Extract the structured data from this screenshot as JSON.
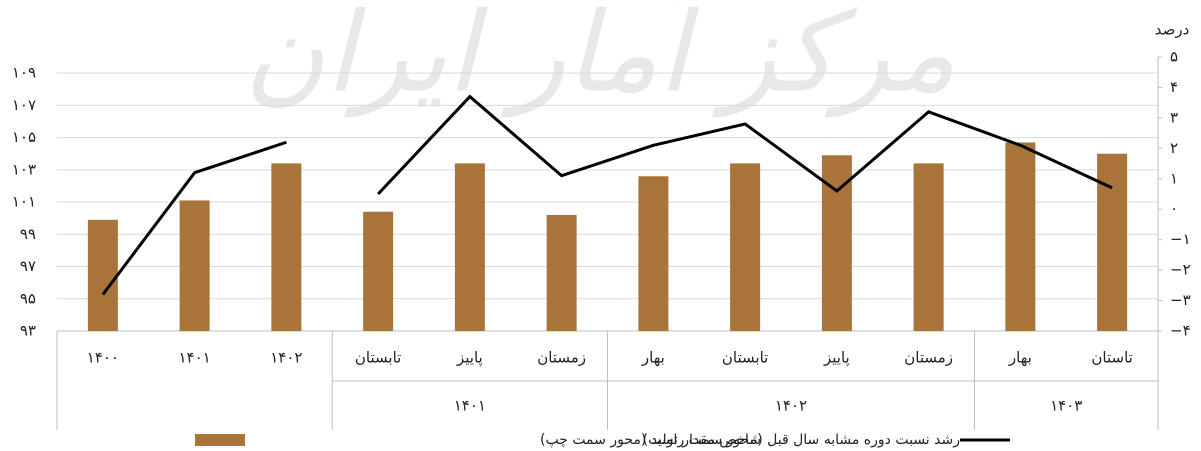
{
  "chart_data": {
    "type": "combo",
    "watermark": "مرکز آمار ایران",
    "y2_label": "درصد",
    "categories": [
      "۱۴۰۰",
      "۱۴۰۱",
      "۱۴۰۲",
      "تابستان",
      "پاییز",
      "زمستان",
      "بهار",
      "تابستان",
      "پاییز",
      "زمستان",
      "بهار",
      "تاستان"
    ],
    "groups": [
      {
        "label": null,
        "size": 3
      },
      {
        "label": "۱۴۰۱",
        "size": 3
      },
      {
        "label": "۱۴۰۲",
        "size": 4
      },
      {
        "label": "۱۴۰۳",
        "size": 2
      }
    ],
    "series": [
      {
        "name": "شاخص مقدار تولید (محور سمت چپ)",
        "type": "bar",
        "color": "#a9743a",
        "values": [
          99.9,
          101.1,
          103.4,
          100.4,
          103.4,
          100.2,
          102.6,
          103.4,
          103.9,
          103.4,
          104.7,
          104.0
        ]
      },
      {
        "name": "رشد نسبت دوره مشابه سال قبل (محور سمت راست)",
        "type": "line",
        "color": "#000000",
        "axis": "y2",
        "line_break_before": [
          3
        ],
        "values": [
          -2.8,
          1.2,
          2.2,
          0.5,
          3.7,
          1.1,
          2.1,
          2.8,
          0.6,
          3.2,
          2.1,
          0.7
        ]
      }
    ],
    "ylim": [
      93,
      110
    ],
    "yticks": [
      {
        "value": 93,
        "label": "۹۳"
      },
      {
        "value": 95,
        "label": "۹۵"
      },
      {
        "value": 97,
        "label": "۹۷"
      },
      {
        "value": 99,
        "label": "۹۹"
      },
      {
        "value": 101,
        "label": "۱۰۱"
      },
      {
        "value": 103,
        "label": "۱۰۳"
      },
      {
        "value": 105,
        "label": "۱۰۵"
      },
      {
        "value": 107,
        "label": "۱۰۷"
      },
      {
        "value": 109,
        "label": "۱۰۹"
      }
    ],
    "y2lim": [
      -4,
      5
    ],
    "y2ticks": [
      {
        "value": 5,
        "label": "۵"
      },
      {
        "value": 4,
        "label": "۴"
      },
      {
        "value": 3,
        "label": "۳"
      },
      {
        "value": 2,
        "label": "۲"
      },
      {
        "value": 1,
        "label": "۱"
      },
      {
        "value": 0,
        "label": "۰"
      },
      {
        "value": -1,
        "label": "−۱"
      },
      {
        "value": -2,
        "label": "−۲"
      },
      {
        "value": -3,
        "label": "−۳"
      },
      {
        "value": -4,
        "label": "−۴"
      }
    ],
    "grid": true,
    "legend": "bottom"
  }
}
